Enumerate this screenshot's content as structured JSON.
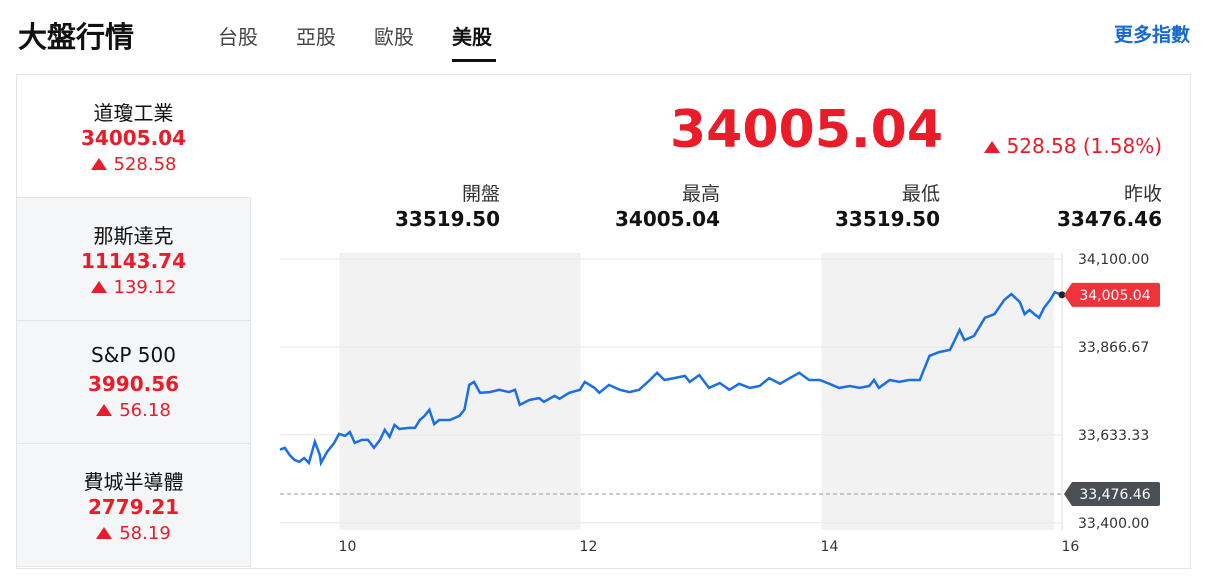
{
  "header": {
    "title": "大盤行情",
    "tabs": [
      "台股",
      "亞股",
      "歐股",
      "美股"
    ],
    "active_tab": 3,
    "more_link": "更多指數"
  },
  "sidebar": {
    "active": 0,
    "items": [
      {
        "name": "道瓊工業",
        "price": "34005.04",
        "change": "528.58"
      },
      {
        "name": "那斯達克",
        "price": "11143.74",
        "change": "139.12"
      },
      {
        "name": "S&P 500",
        "price": "3990.56",
        "change": "56.18"
      },
      {
        "name": "費城半導體",
        "price": "2779.21",
        "change": "58.19"
      }
    ]
  },
  "quote": {
    "price": "34005.04",
    "change": "528.58 (1.58%)",
    "stats": [
      {
        "label": "開盤",
        "value": "33519.50"
      },
      {
        "label": "最高",
        "value": "34005.04"
      },
      {
        "label": "最低",
        "value": "33519.50"
      },
      {
        "label": "昨收",
        "value": "33476.46"
      }
    ]
  },
  "chart_data": {
    "type": "line",
    "x": [
      9.44,
      9.48,
      9.52,
      9.56,
      9.6,
      9.64,
      9.68,
      9.73,
      9.77,
      9.78,
      9.83,
      9.89,
      9.93,
      9.98,
      10.02,
      10.06,
      10.12,
      10.17,
      10.22,
      10.27,
      10.31,
      10.35,
      10.39,
      10.43,
      10.51,
      10.56,
      10.6,
      10.64,
      10.68,
      10.72,
      10.76,
      10.85,
      10.93,
      10.97,
      11.01,
      11.05,
      11.1,
      11.18,
      11.26,
      11.34,
      11.39,
      11.43,
      11.51,
      11.59,
      11.63,
      11.72,
      11.76,
      11.84,
      11.93,
      11.97,
      12.05,
      12.09,
      12.17,
      12.26,
      12.34,
      12.42,
      12.51,
      12.57,
      12.63,
      12.71,
      12.8,
      12.84,
      12.92,
      13.0,
      13.09,
      13.17,
      13.25,
      13.34,
      13.42,
      13.5,
      13.59,
      13.67,
      13.75,
      13.83,
      13.92,
      14.0,
      14.08,
      14.17,
      14.25,
      14.33,
      14.37,
      14.41,
      14.5,
      14.58,
      14.66,
      14.75,
      14.79,
      14.83,
      14.91,
      15.0,
      15.04,
      15.08,
      15.12,
      15.2,
      15.29,
      15.37,
      15.45,
      15.51,
      15.58,
      15.62,
      15.66,
      15.7,
      15.74,
      15.78,
      15.83,
      15.87,
      15.93
    ],
    "series": [
      {
        "color": "#1a6fe6",
        "values": [
          33594,
          33599,
          33580,
          33567,
          33562,
          33572,
          33559,
          33615,
          33580,
          33559,
          33588,
          33612,
          33636,
          33631,
          33641,
          33612,
          33620,
          33620,
          33599,
          33620,
          33647,
          33628,
          33660,
          33649,
          33652,
          33652,
          33673,
          33684,
          33700,
          33662,
          33673,
          33673,
          33684,
          33700,
          33766,
          33774,
          33745,
          33747,
          33753,
          33747,
          33753,
          33713,
          33726,
          33731,
          33721,
          33737,
          33729,
          33745,
          33753,
          33774,
          33758,
          33745,
          33766,
          33753,
          33747,
          33753,
          33779,
          33798,
          33779,
          33784,
          33790,
          33774,
          33792,
          33758,
          33771,
          33753,
          33769,
          33758,
          33763,
          33784,
          33769,
          33784,
          33798,
          33779,
          33779,
          33769,
          33758,
          33763,
          33758,
          33763,
          33779,
          33758,
          33779,
          33774,
          33779,
          33779,
          33811,
          33843,
          33853,
          33859,
          33885,
          33912,
          33885,
          33896,
          33944,
          33954,
          33991,
          34007,
          33986,
          33954,
          33965,
          33954,
          33944,
          33970,
          33991,
          34012,
          34005.04
        ]
      }
    ],
    "xlim": [
      9.44,
      15.93
    ],
    "xticks": [
      10,
      12,
      14,
      16
    ],
    "ylim": [
      33381,
      34116
    ],
    "yticks": [
      {
        "value": 33400,
        "label": "33,400.00"
      },
      {
        "value": 33633.33,
        "label": "33,633.33"
      },
      {
        "value": 33866.67,
        "label": "33,866.67"
      },
      {
        "value": 34100,
        "label": "34,100.00"
      }
    ],
    "grid": true,
    "last_price": {
      "value": 34005.04,
      "label": "34,005.04",
      "color": "#f0323c"
    },
    "previous_close": {
      "value": 33476.46,
      "label": "33,476.46",
      "color": "#4a4f55"
    }
  }
}
